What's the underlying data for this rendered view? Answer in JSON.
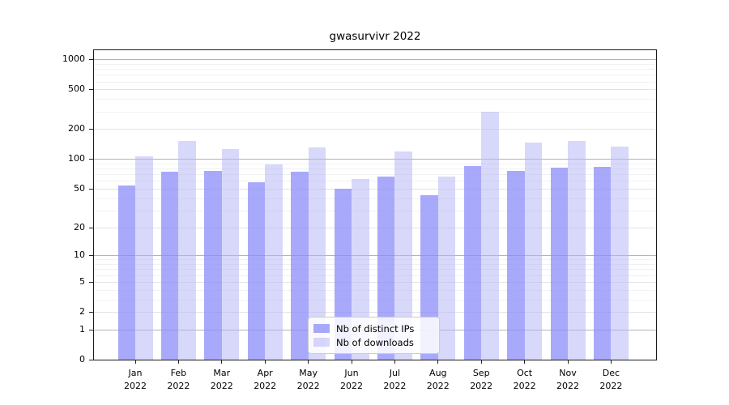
{
  "chart_data": {
    "type": "bar",
    "title": "gwasurvivr 2022",
    "categories": [
      "Jan",
      "Feb",
      "Mar",
      "Apr",
      "May",
      "Jun",
      "Jul",
      "Aug",
      "Sep",
      "Oct",
      "Nov",
      "Dec"
    ],
    "year_label": "2022",
    "series": [
      {
        "name": "Nb of distinct IPs",
        "color": "#aaaafa",
        "fill": "rgba(140,140,250,0.75)",
        "values": [
          54,
          75,
          76,
          58,
          75,
          50,
          66,
          43,
          85,
          76,
          82,
          83
        ]
      },
      {
        "name": "Nb of downloads",
        "color": "#d9d9fa",
        "fill": "rgba(180,180,245,0.52)",
        "values": [
          106,
          153,
          125,
          88,
          130,
          63,
          118,
          67,
          299,
          147,
          153,
          133
        ]
      }
    ],
    "yscale": "log1p",
    "yticks": [
      0,
      1,
      2,
      5,
      10,
      20,
      50,
      100,
      200,
      500,
      1000
    ],
    "ylim": [
      0,
      1230
    ],
    "grid": true,
    "legend_position": "inside-bottom-center",
    "grid_colors": {
      "major": "#b3b3b3",
      "secondary": "#e3e3e3",
      "minor": "#f1f1f1"
    }
  }
}
